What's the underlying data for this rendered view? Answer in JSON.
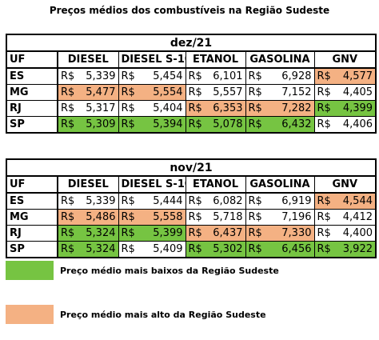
{
  "title": "Preços médios dos combustíveis na Região Sudeste",
  "columns": [
    "UF",
    "DIESEL",
    "DIESEL S-10",
    "ETANOL",
    "GASOLINA",
    "GNV"
  ],
  "currency": "R$",
  "colors": {
    "lowest": "#76c442",
    "highest": "#f4b183"
  },
  "tables": [
    {
      "month": "dez/21",
      "rows": [
        {
          "uf": "ES",
          "cells": [
            {
              "value": "5,339",
              "hl": ""
            },
            {
              "value": "5,454",
              "hl": ""
            },
            {
              "value": "6,101",
              "hl": ""
            },
            {
              "value": "6,928",
              "hl": ""
            },
            {
              "value": "4,577",
              "hl": "high"
            }
          ]
        },
        {
          "uf": "MG",
          "cells": [
            {
              "value": "5,477",
              "hl": "high"
            },
            {
              "value": "5,554",
              "hl": "high"
            },
            {
              "value": "5,557",
              "hl": ""
            },
            {
              "value": "7,152",
              "hl": ""
            },
            {
              "value": "4,405",
              "hl": ""
            }
          ]
        },
        {
          "uf": "RJ",
          "cells": [
            {
              "value": "5,317",
              "hl": ""
            },
            {
              "value": "5,404",
              "hl": ""
            },
            {
              "value": "6,353",
              "hl": "high"
            },
            {
              "value": "7,282",
              "hl": "high"
            },
            {
              "value": "4,399",
              "hl": "low"
            }
          ]
        },
        {
          "uf": "SP",
          "cells": [
            {
              "value": "5,309",
              "hl": "low"
            },
            {
              "value": "5,394",
              "hl": "low"
            },
            {
              "value": "5,078",
              "hl": "low"
            },
            {
              "value": "6,432",
              "hl": "low"
            },
            {
              "value": "4,406",
              "hl": ""
            }
          ]
        }
      ]
    },
    {
      "month": "nov/21",
      "rows": [
        {
          "uf": "ES",
          "cells": [
            {
              "value": "5,339",
              "hl": ""
            },
            {
              "value": "5,444",
              "hl": ""
            },
            {
              "value": "6,082",
              "hl": ""
            },
            {
              "value": "6,919",
              "hl": ""
            },
            {
              "value": "4,544",
              "hl": "high"
            }
          ]
        },
        {
          "uf": "MG",
          "cells": [
            {
              "value": "5,486",
              "hl": "high"
            },
            {
              "value": "5,558",
              "hl": "high"
            },
            {
              "value": "5,718",
              "hl": ""
            },
            {
              "value": "7,196",
              "hl": ""
            },
            {
              "value": "4,412",
              "hl": ""
            }
          ]
        },
        {
          "uf": "RJ",
          "cells": [
            {
              "value": "5,324",
              "hl": "low"
            },
            {
              "value": "5,399",
              "hl": "low"
            },
            {
              "value": "6,437",
              "hl": "high"
            },
            {
              "value": "7,330",
              "hl": "high"
            },
            {
              "value": "4,400",
              "hl": ""
            }
          ]
        },
        {
          "uf": "SP",
          "cells": [
            {
              "value": "5,324",
              "hl": "low"
            },
            {
              "value": "5,409",
              "hl": ""
            },
            {
              "value": "5,302",
              "hl": "low"
            },
            {
              "value": "6,456",
              "hl": "low"
            },
            {
              "value": "3,922",
              "hl": "low"
            }
          ]
        }
      ]
    }
  ],
  "legend": {
    "lowest_label": "Preço médio mais baixos da Região Sudeste",
    "highest_label": "Preço médio mais alto da Região Sudeste"
  }
}
